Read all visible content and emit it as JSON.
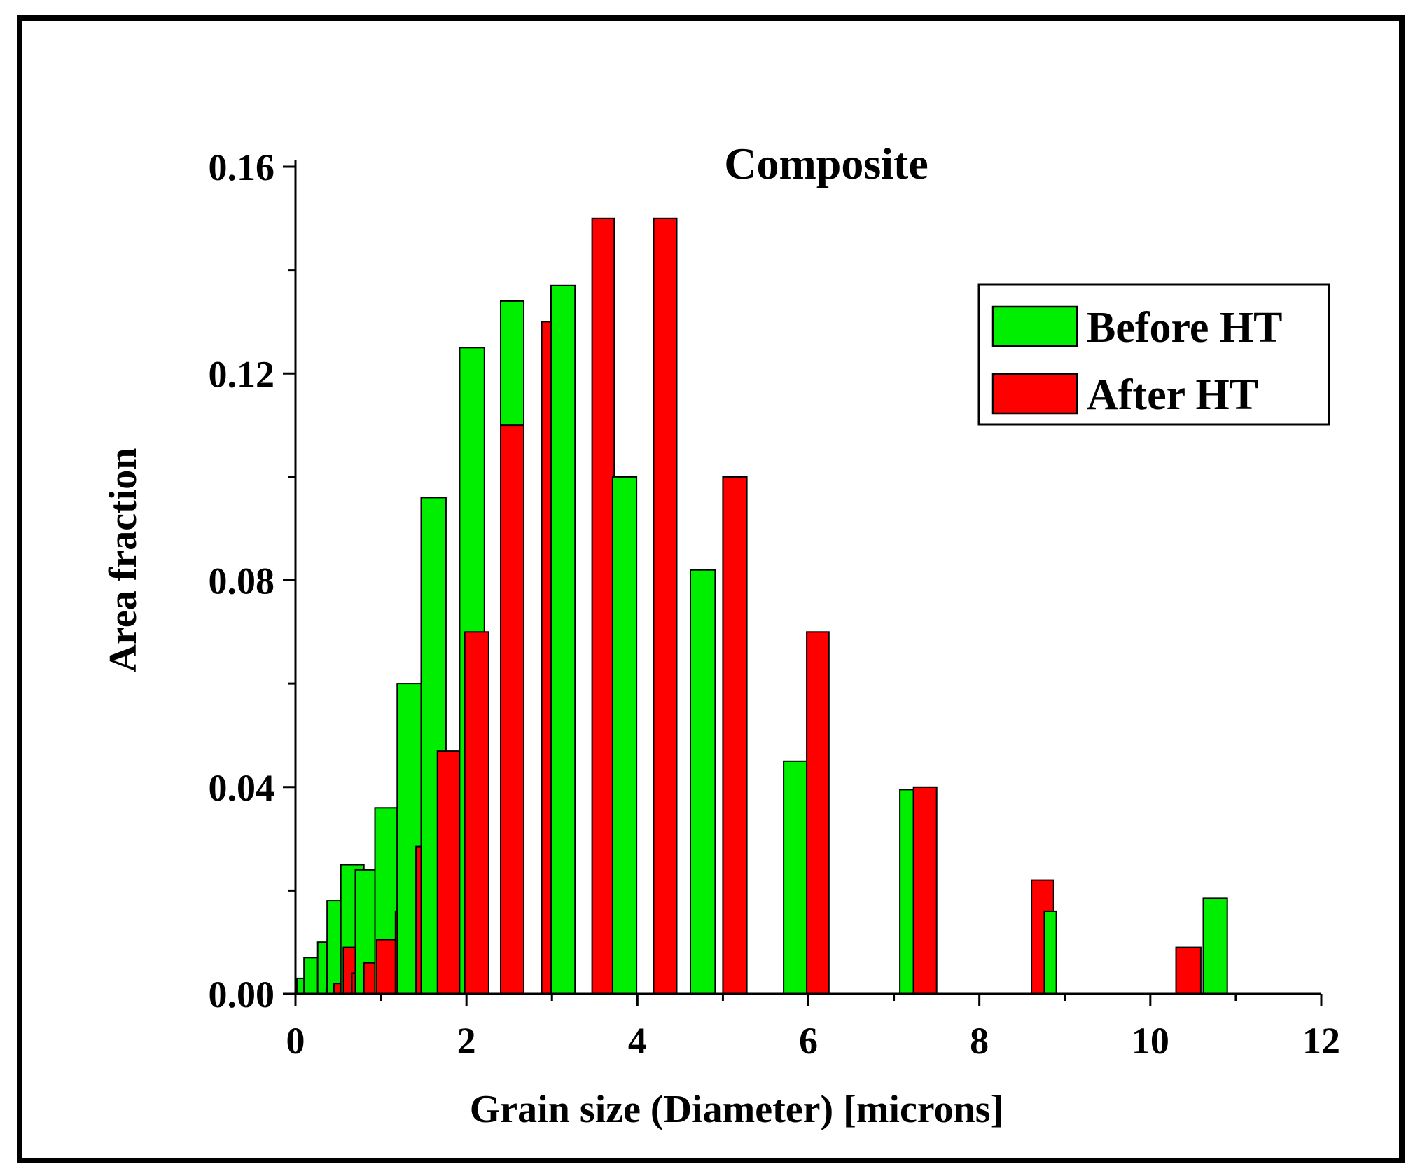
{
  "chart_data": {
    "type": "bar",
    "title": "Composite",
    "xlabel": "Grain size (Diameter) [microns]",
    "ylabel": "Area fraction",
    "xlim": [
      0,
      12
    ],
    "ylim": [
      0,
      0.16
    ],
    "xticks": [
      0,
      2,
      4,
      6,
      8,
      10,
      12
    ],
    "xtick_labels": [
      "0",
      "2",
      "4",
      "6",
      "8",
      "10",
      "12"
    ],
    "yticks": [
      0,
      0.04,
      0.08,
      0.12,
      0.16
    ],
    "ytick_labels": [
      "0.00",
      "0.04",
      "0.08",
      "0.12",
      "0.16"
    ],
    "grid": false,
    "legend_position": "top-right",
    "series": [
      {
        "name": "Before HT",
        "color": "#00ee00",
        "bars": [
          {
            "x0": 0.02,
            "x1": 0.1,
            "value": 0.003
          },
          {
            "x0": 0.1,
            "x1": 0.26,
            "value": 0.007
          },
          {
            "x0": 0.26,
            "x1": 0.37,
            "value": 0.01
          },
          {
            "x0": 0.37,
            "x1": 0.53,
            "value": 0.018
          },
          {
            "x0": 0.53,
            "x1": 0.8,
            "value": 0.025
          },
          {
            "x0": 0.7,
            "x1": 0.93,
            "value": 0.024
          },
          {
            "x0": 0.93,
            "x1": 1.19,
            "value": 0.036
          },
          {
            "x0": 1.19,
            "x1": 1.47,
            "value": 0.06
          },
          {
            "x0": 1.47,
            "x1": 1.76,
            "value": 0.096
          },
          {
            "x0": 1.92,
            "x1": 2.21,
            "value": 0.125
          },
          {
            "x0": 2.4,
            "x1": 2.67,
            "value": 0.134
          },
          {
            "x0": 2.99,
            "x1": 3.27,
            "value": 0.137
          },
          {
            "x0": 3.71,
            "x1": 3.99,
            "value": 0.1
          },
          {
            "x0": 4.62,
            "x1": 4.91,
            "value": 0.082
          },
          {
            "x0": 5.71,
            "x1": 5.99,
            "value": 0.045
          },
          {
            "x0": 7.07,
            "x1": 7.23,
            "value": 0.0395
          },
          {
            "x0": 8.76,
            "x1": 8.9,
            "value": 0.016
          },
          {
            "x0": 10.62,
            "x1": 10.9,
            "value": 0.0185
          }
        ]
      },
      {
        "name": "After HT",
        "color": "#ff0000",
        "bars": [
          {
            "x0": 0.36,
            "x1": 0.45,
            "value": 0.001
          },
          {
            "x0": 0.45,
            "x1": 0.56,
            "value": 0.002
          },
          {
            "x0": 0.56,
            "x1": 0.83,
            "value": 0.009
          },
          {
            "x0": 0.66,
            "x1": 0.8,
            "value": 0.004
          },
          {
            "x0": 0.8,
            "x1": 0.95,
            "value": 0.006
          },
          {
            "x0": 0.95,
            "x1": 1.17,
            "value": 0.0105
          },
          {
            "x0": 1.17,
            "x1": 1.41,
            "value": 0.016
          },
          {
            "x0": 1.41,
            "x1": 1.66,
            "value": 0.0285
          },
          {
            "x0": 1.66,
            "x1": 1.96,
            "value": 0.047
          },
          {
            "x0": 1.98,
            "x1": 2.26,
            "value": 0.07
          },
          {
            "x0": 2.4,
            "x1": 2.67,
            "value": 0.11
          },
          {
            "x0": 2.88,
            "x1": 3.16,
            "value": 0.13
          },
          {
            "x0": 3.47,
            "x1": 3.73,
            "value": 0.15
          },
          {
            "x0": 4.19,
            "x1": 4.46,
            "value": 0.15
          },
          {
            "x0": 5.0,
            "x1": 5.28,
            "value": 0.1
          },
          {
            "x0": 5.98,
            "x1": 6.24,
            "value": 0.07
          },
          {
            "x0": 7.23,
            "x1": 7.5,
            "value": 0.04
          },
          {
            "x0": 8.61,
            "x1": 8.87,
            "value": 0.022
          },
          {
            "x0": 10.3,
            "x1": 10.59,
            "value": 0.009
          }
        ]
      }
    ]
  }
}
